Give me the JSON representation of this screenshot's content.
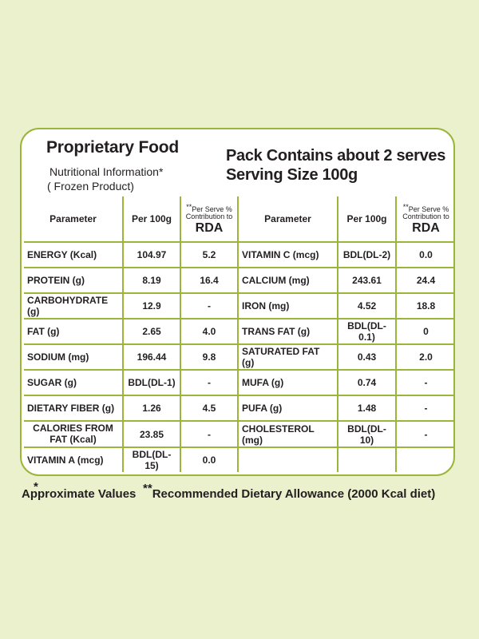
{
  "header": {
    "title": "Proprietary Food",
    "subtitle_1": "Nutritional Information*",
    "subtitle_2": "( Frozen Product)",
    "pack": "Pack Contains about 2 serves",
    "serving": "Serving Size 100g"
  },
  "columns": {
    "parameter": "Parameter",
    "per100g": "Per 100g",
    "rda_stars": "**",
    "rda_line1": "Per Serve %",
    "rda_line2": "Contribution to",
    "rda_label": "RDA"
  },
  "rows": [
    {
      "l_name": "ENERGY (Kcal)",
      "l_val": "104.97",
      "l_rda": "5.2",
      "r_name": "VITAMIN C (mcg)",
      "r_val": "BDL(DL-2)",
      "r_rda": "0.0"
    },
    {
      "l_name": "PROTEIN (g)",
      "l_val": "8.19",
      "l_rda": "16.4",
      "r_name": "CALCIUM (mg)",
      "r_val": "243.61",
      "r_rda": "24.4"
    },
    {
      "l_name": "CARBOHYDRATE (g)",
      "l_val": "12.9",
      "l_rda": "-",
      "r_name": "IRON (mg)",
      "r_val": "4.52",
      "r_rda": "18.8"
    },
    {
      "l_name": "FAT (g)",
      "l_val": "2.65",
      "l_rda": "4.0",
      "r_name": "TRANS FAT (g)",
      "r_val": "BDL(DL-0.1)",
      "r_rda": "0"
    },
    {
      "l_name": "SODIUM (mg)",
      "l_val": "196.44",
      "l_rda": "9.8",
      "r_name": "SATURATED FAT (g)",
      "r_val": "0.43",
      "r_rda": "2.0"
    },
    {
      "l_name": "SUGAR (g)",
      "l_val": "BDL(DL-1)",
      "l_rda": "-",
      "r_name": "MUFA (g)",
      "r_val": "0.74",
      "r_rda": "-"
    },
    {
      "l_name": "DIETARY FIBER (g)",
      "l_val": "1.26",
      "l_rda": "4.5",
      "r_name": "PUFA (g)",
      "r_val": "1.48",
      "r_rda": "-"
    },
    {
      "l_name_1": "CALORIES FROM",
      "l_name_2": "FAT (Kcal)",
      "l_val": "23.85",
      "l_rda": "-",
      "r_name": "CHOLESTEROL (mg)",
      "r_val": "BDL(DL-10)",
      "r_rda": "-"
    },
    {
      "l_name": "VITAMIN A (mcg)",
      "l_val": "BDL(DL-15)",
      "l_rda": "0.0",
      "r_name": "",
      "r_val": "",
      "r_rda": ""
    }
  ],
  "footer": {
    "star1": "*",
    "approx": "Approximate Values",
    "star2": "**",
    "rda_note": "Recommended Dietary Allowance (2000 Kcal diet)"
  },
  "colors": {
    "background": "#eaf1cc",
    "border": "#9bb43a"
  }
}
